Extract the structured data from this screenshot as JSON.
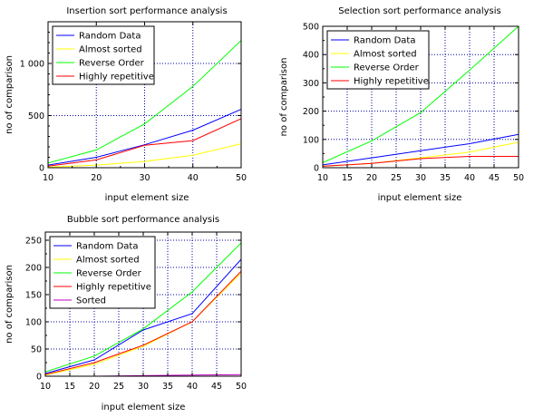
{
  "chart_data": [
    {
      "type": "line",
      "title": "Insertion sort performance analysis",
      "xlabel": "input element size",
      "ylabel": "no of comparison",
      "x": [
        10,
        20,
        30,
        40,
        50
      ],
      "xlim": [
        10,
        50
      ],
      "ylim": [
        0,
        1400
      ],
      "xticks": [
        10,
        20,
        30,
        40,
        50
      ],
      "yticks": [
        0,
        500,
        1000
      ],
      "ytick_labels": [
        "0",
        "500",
        "1 000"
      ],
      "grid": true,
      "legend": "top-left",
      "series": [
        {
          "name": "Random Data",
          "color": "#0000ff",
          "values": [
            25,
            100,
            220,
            360,
            560
          ]
        },
        {
          "name": "Almost sorted",
          "color": "#ffff00",
          "values": [
            5,
            25,
            60,
            120,
            230
          ]
        },
        {
          "name": "Reverse Order",
          "color": "#00ff00",
          "values": [
            45,
            170,
            420,
            780,
            1220
          ]
        },
        {
          "name": "Highly repetitive",
          "color": "#ff0000",
          "values": [
            15,
            75,
            215,
            260,
            470
          ]
        }
      ]
    },
    {
      "type": "line",
      "title": "Selection sort performance analysis",
      "xlabel": "input element size",
      "ylabel": "no of comparison",
      "x": [
        10,
        20,
        30,
        40,
        50
      ],
      "xlim": [
        10,
        50
      ],
      "ylim": [
        0,
        500
      ],
      "xticks": [
        10,
        15,
        20,
        25,
        30,
        35,
        40,
        45,
        50
      ],
      "yticks": [
        0,
        100,
        200,
        300,
        400,
        500
      ],
      "ytick_labels": [
        "0",
        "100",
        "200",
        "300",
        "400",
        "500"
      ],
      "grid": true,
      "legend": "top-left",
      "series": [
        {
          "name": "Random Data",
          "color": "#0000ff",
          "values": [
            10,
            35,
            60,
            85,
            118
          ]
        },
        {
          "name": "Almost sorted",
          "color": "#ffff00",
          "values": [
            5,
            15,
            35,
            55,
            90
          ]
        },
        {
          "name": "Reverse Order",
          "color": "#00ff00",
          "values": [
            18,
            95,
            195,
            345,
            500
          ]
        },
        {
          "name": "Highly repetitive",
          "color": "#ff0000",
          "values": [
            5,
            15,
            32,
            40,
            40
          ]
        }
      ]
    },
    {
      "type": "line",
      "title": "Bubble sort performance analysis",
      "xlabel": "input element size",
      "ylabel": "no of comparison",
      "x": [
        10,
        20,
        30,
        40,
        50
      ],
      "xlim": [
        10,
        50
      ],
      "ylim": [
        0,
        265
      ],
      "xticks": [
        10,
        15,
        20,
        25,
        30,
        35,
        40,
        45,
        50
      ],
      "yticks": [
        0,
        50,
        100,
        150,
        200,
        250
      ],
      "ytick_labels": [
        "0",
        "50",
        "100",
        "150",
        "200",
        "250"
      ],
      "grid": true,
      "legend": "top-left",
      "series": [
        {
          "name": "Random Data",
          "color": "#0000ff",
          "values": [
            5,
            30,
            85,
            115,
            215
          ]
        },
        {
          "name": "Almost sorted",
          "color": "#ffff00",
          "values": [
            2,
            22,
            55,
            100,
            190
          ]
        },
        {
          "name": "Reverse Order",
          "color": "#00ff00",
          "values": [
            8,
            37,
            87,
            155,
            245
          ]
        },
        {
          "name": "Highly repetitive",
          "color": "#ff0000",
          "values": [
            3,
            25,
            57,
            100,
            193
          ]
        },
        {
          "name": "Sorted",
          "color": "#bf00bf",
          "values": [
            0,
            0,
            1,
            2,
            3
          ]
        }
      ]
    }
  ]
}
